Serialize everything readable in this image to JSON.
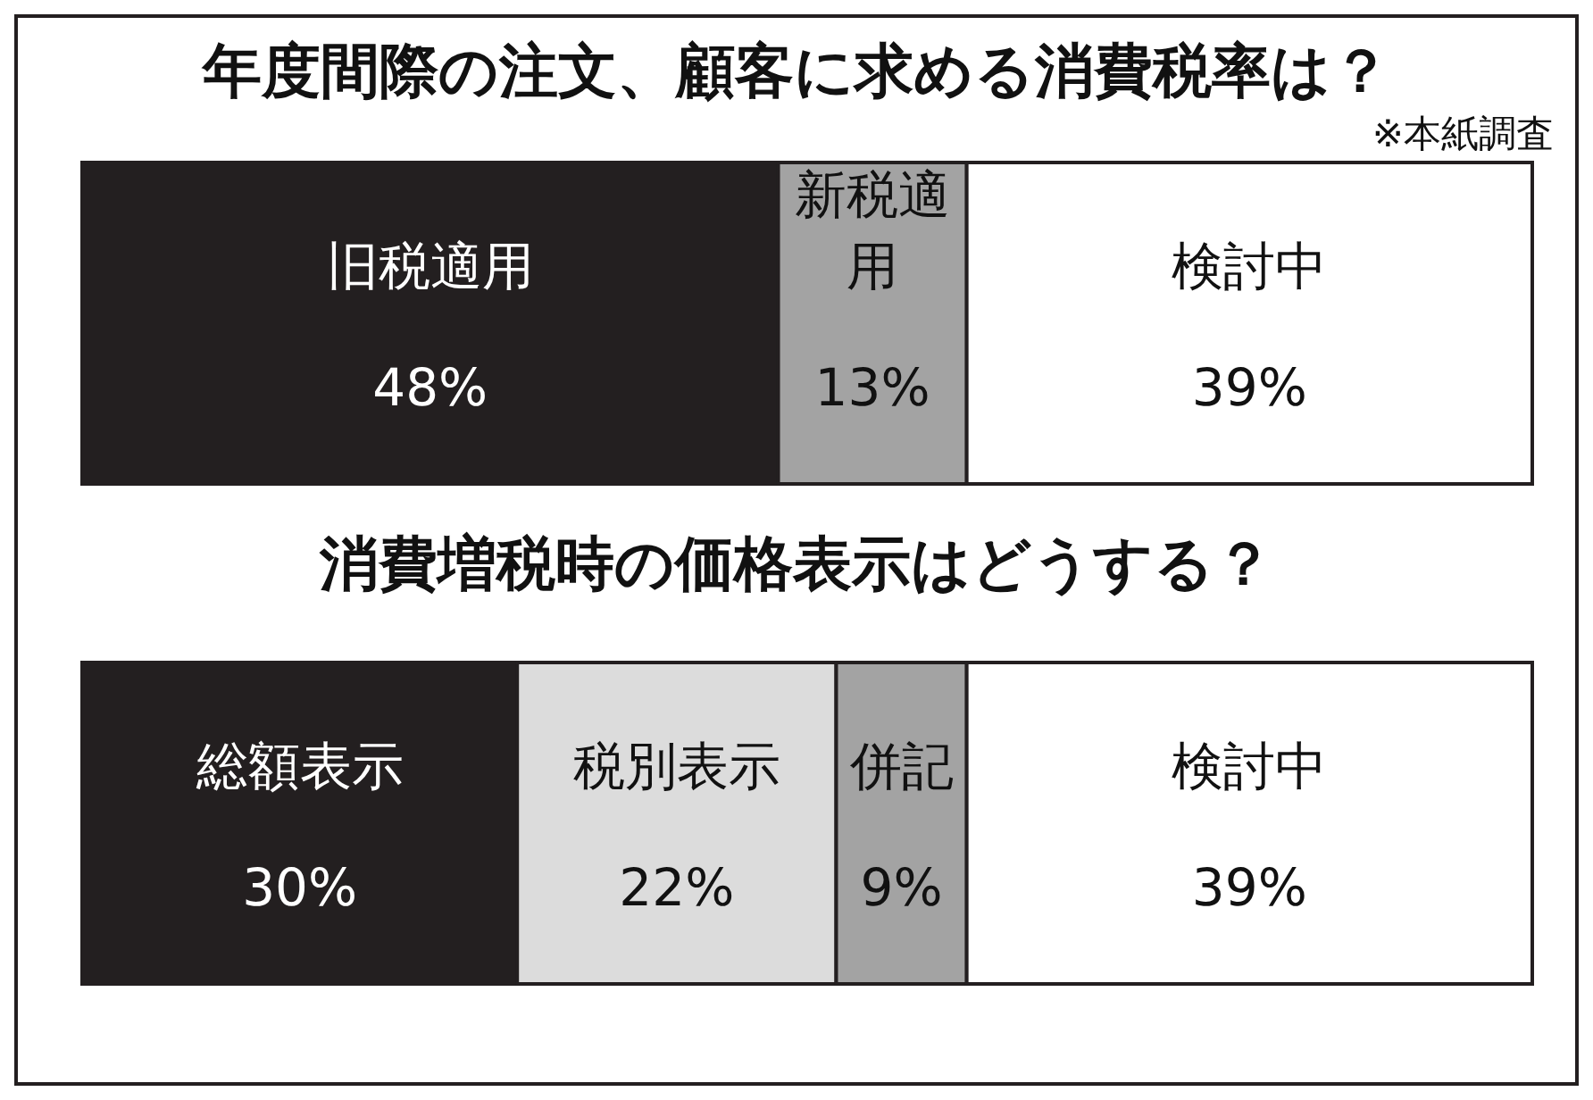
{
  "chart_data": [
    {
      "type": "bar",
      "title": "年度間際の注文、顧客に求める消費税率は？",
      "annotations": [
        "※本紙調査"
      ],
      "orientation": "horizontal",
      "stacked": true,
      "tick_labels": false,
      "categories": [
        null
      ],
      "series": [
        {
          "name": "旧税適用",
          "color": "#231f20",
          "values": [
            48
          ],
          "value_labels": [
            "48%"
          ]
        },
        {
          "name": "新税適用",
          "color": "#a3a3a3",
          "values": [
            13
          ],
          "value_labels": [
            "13%"
          ]
        },
        {
          "name": "検討中",
          "color": "#ffffff",
          "values": [
            39
          ],
          "value_labels": [
            "39%"
          ]
        }
      ]
    },
    {
      "type": "bar",
      "title": "消費増税時の価格表示はどうする？",
      "orientation": "horizontal",
      "stacked": true,
      "tick_labels": false,
      "categories": [
        null
      ],
      "series": [
        {
          "name": "総額表示",
          "color": "#231f20",
          "values": [
            30
          ],
          "value_labels": [
            "30%"
          ]
        },
        {
          "name": "税別表示",
          "color": "#dcdcdc",
          "values": [
            22
          ],
          "value_labels": [
            "22%"
          ]
        },
        {
          "name": "併記",
          "color": "#a3a3a3",
          "values": [
            9
          ],
          "value_labels": [
            "9%"
          ]
        },
        {
          "name": "検討中",
          "color": "#ffffff",
          "values": [
            39
          ],
          "value_labels": [
            "39%"
          ]
        }
      ]
    }
  ]
}
